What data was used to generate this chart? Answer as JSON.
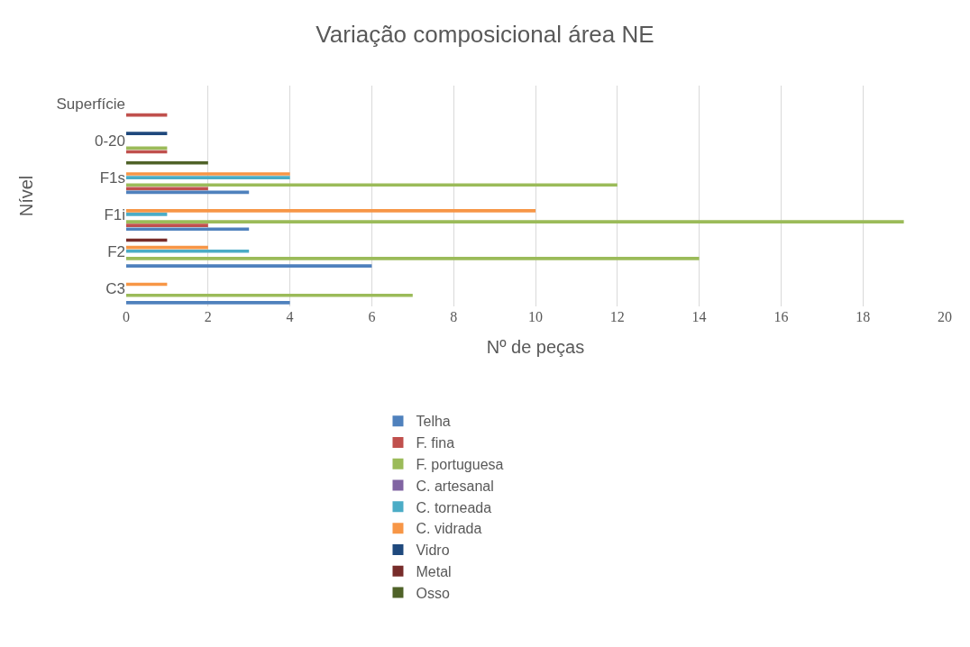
{
  "chart_data": {
    "type": "bar",
    "orientation": "horizontal",
    "title": "Variação composicional área NE",
    "xlabel": "Nº de peças",
    "ylabel": "Nível",
    "categories": [
      "Superfície",
      "0-20",
      "F1s",
      "F1i",
      "F2",
      "C3"
    ],
    "series": [
      {
        "name": "Telha",
        "color": "#4f81bd",
        "values": [
          null,
          null,
          3,
          3,
          6,
          4
        ]
      },
      {
        "name": "F. fina",
        "color": "#c0504d",
        "values": [
          1,
          1,
          2,
          2,
          null,
          null
        ]
      },
      {
        "name": "F. portuguesa",
        "color": "#9bbb59",
        "values": [
          null,
          1,
          12,
          19,
          14,
          7
        ]
      },
      {
        "name": "C. artesanal",
        "color": "#8064a2",
        "values": [
          null,
          null,
          null,
          null,
          null,
          null
        ]
      },
      {
        "name": "C. torneada",
        "color": "#4bacc6",
        "values": [
          null,
          null,
          4,
          1,
          3,
          null
        ]
      },
      {
        "name": "C. vidrada",
        "color": "#f79646",
        "values": [
          null,
          null,
          4,
          10,
          2,
          1
        ]
      },
      {
        "name": "Vidro",
        "color": "#1f497d",
        "values": [
          null,
          1,
          null,
          null,
          null,
          null
        ]
      },
      {
        "name": "Metal",
        "color": "#772c2a",
        "values": [
          null,
          null,
          null,
          null,
          1,
          null
        ]
      },
      {
        "name": "Osso",
        "color": "#4f6228",
        "values": [
          null,
          null,
          2,
          null,
          null,
          null
        ]
      }
    ],
    "xlim": [
      0,
      20
    ],
    "xticks": [
      0,
      2,
      4,
      6,
      8,
      10,
      12,
      14,
      16,
      18,
      20
    ],
    "grid": "x",
    "legend": "bottom"
  }
}
